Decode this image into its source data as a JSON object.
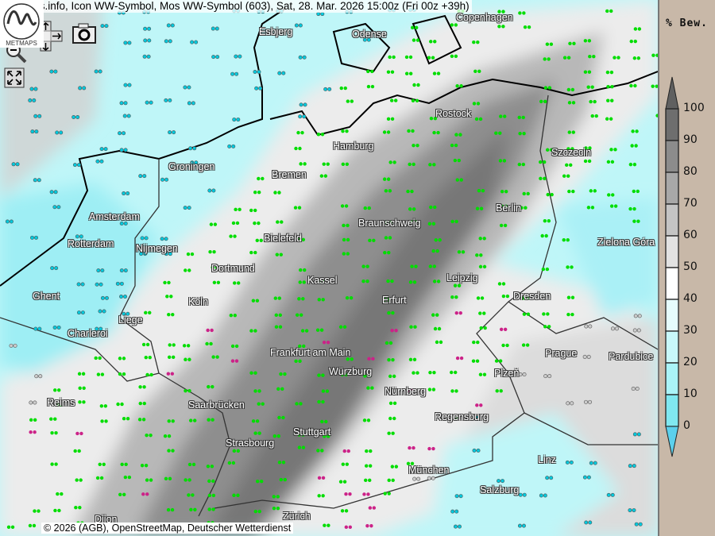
{
  "header": {
    "title": "MetMaps.info, Icon WW-Symbol, Mos WW-Symbol (603), Sat, 28. Mar. 2026 15:00z (Fri 00z +39h)"
  },
  "controls": {
    "zoom_in": "zoom-in-icon",
    "zoom_out": "zoom-out-icon",
    "pan": "pan-arrows-icon",
    "screenshot": "camera-icon",
    "fullscreen": "fullscreen-icon"
  },
  "cities": [
    "Copenhagen",
    "Esbjerg",
    "Odense",
    "Rostock",
    "Hamburg",
    "Szczecin",
    "Groningen",
    "Bremen",
    "Amsterdam",
    "Berlin",
    "Braunschweig",
    "Rotterdam",
    "Nijmegen",
    "Bielefeld",
    "Zielona Góra",
    "Dortmund",
    "Kassel",
    "Leipzig",
    "Ghent",
    "Köln",
    "Erfurt",
    "Dresden",
    "Liege",
    "Charleroi",
    "Frankfurt am Main",
    "Prague",
    "Pardubice",
    "Würzburg",
    "Plzeň",
    "Reims",
    "Nürnberg",
    "Saarbrücken",
    "Regensburg",
    "Stuttgart",
    "Strasbourg",
    "Linz",
    "München",
    "Salzburg",
    "Zürich",
    "Dijon"
  ],
  "footer": {
    "copyright": "© 2026 (AGB), OpenStreetMap, Deutscher Wetterdienst",
    "logo_text": "METMAPS"
  },
  "legend": {
    "title": "% Bew.",
    "labels": [
      "100",
      "90",
      "80",
      "70",
      "60",
      "50",
      "40",
      "30",
      "20",
      "10",
      "0"
    ],
    "colors": [
      "#6e6e6e",
      "#8c8c8c",
      "#a8a8a8",
      "#c4c4c4",
      "#e2e2e2",
      "#ffffff",
      "#e6fcfc",
      "#c8f8fa",
      "#aaf4f8",
      "#80e8f0"
    ],
    "over_color": "#606060",
    "under_color": "#5cd0ec"
  },
  "symbol_colors": {
    "rain": "#00dd00",
    "snow_shower": "#cc2288",
    "drizzle_cyan": "#00c8dc",
    "cloud": "#cccccc",
    "snow": "#3399ff"
  }
}
